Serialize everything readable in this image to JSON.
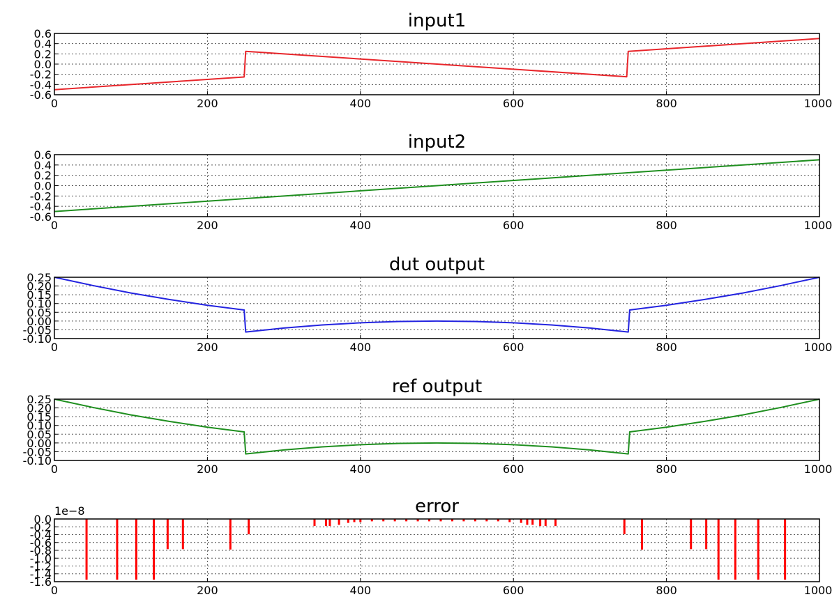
{
  "chart_data": [
    {
      "type": "line",
      "title": "input1",
      "xlim": [
        0,
        1000
      ],
      "ylim": [
        -0.6,
        0.6
      ],
      "xticks": [
        "0",
        "200",
        "400",
        "600",
        "800",
        "1000"
      ],
      "yticks": [
        "0.6",
        "0.4",
        "0.2",
        "0.0",
        "-0.2",
        "-0.4",
        "-0.6"
      ],
      "grid": true,
      "series": [
        {
          "color": "#e8262b",
          "x": [
            0,
            248,
            250,
            500,
            748,
            750,
            1000
          ],
          "y": [
            -0.5,
            -0.252,
            0.25,
            0.0,
            -0.248,
            0.25,
            0.5
          ]
        }
      ]
    },
    {
      "type": "line",
      "title": "input2",
      "xlim": [
        0,
        1000
      ],
      "ylim": [
        -0.6,
        0.6
      ],
      "xticks": [
        "0",
        "200",
        "400",
        "600",
        "800",
        "1000"
      ],
      "yticks": [
        "0.6",
        "0.4",
        "0.2",
        "0.0",
        "-0.2",
        "-0.4",
        "-0.6"
      ],
      "grid": true,
      "series": [
        {
          "color": "#1f8f1f",
          "x": [
            0,
            1000
          ],
          "y": [
            -0.5,
            0.5
          ]
        }
      ]
    },
    {
      "type": "line",
      "title": "dut output",
      "xlim": [
        0,
        1000
      ],
      "ylim": [
        -0.1,
        0.25
      ],
      "xticks": [
        "0",
        "200",
        "400",
        "600",
        "800",
        "1000"
      ],
      "yticks": [
        "0.25",
        "0.20",
        "0.15",
        "0.10",
        "0.05",
        "0.00",
        "-0.05",
        "-0.10"
      ],
      "grid": true,
      "series": [
        {
          "color": "#2424e0",
          "x": [
            0,
            50,
            100,
            150,
            200,
            248,
            250,
            300,
            350,
            400,
            450,
            500,
            550,
            600,
            650,
            700,
            750,
            752,
            800,
            850,
            900,
            950,
            1000
          ],
          "y": [
            0.25,
            0.203,
            0.16,
            0.123,
            0.09,
            0.063,
            -0.0625,
            -0.04,
            -0.0225,
            -0.01,
            -0.0025,
            0.0,
            -0.0025,
            -0.01,
            -0.0225,
            -0.04,
            -0.0625,
            0.063,
            0.09,
            0.123,
            0.16,
            0.203,
            0.25
          ]
        }
      ]
    },
    {
      "type": "line",
      "title": "ref output",
      "xlim": [
        0,
        1000
      ],
      "ylim": [
        -0.1,
        0.25
      ],
      "xticks": [
        "0",
        "200",
        "400",
        "600",
        "800",
        "1000"
      ],
      "yticks": [
        "0.25",
        "0.20",
        "0.15",
        "0.10",
        "0.05",
        "0.00",
        "-0.05",
        "-0.10"
      ],
      "grid": true,
      "series": [
        {
          "color": "#1f8f1f",
          "x": [
            0,
            50,
            100,
            150,
            200,
            248,
            250,
            300,
            350,
            400,
            450,
            500,
            550,
            600,
            650,
            700,
            750,
            752,
            800,
            850,
            900,
            950,
            1000
          ],
          "y": [
            0.25,
            0.203,
            0.16,
            0.123,
            0.09,
            0.063,
            -0.0625,
            -0.04,
            -0.0225,
            -0.01,
            -0.0025,
            0.0,
            -0.0025,
            -0.01,
            -0.0225,
            -0.04,
            -0.0625,
            0.063,
            0.09,
            0.123,
            0.16,
            0.203,
            0.25
          ]
        }
      ]
    },
    {
      "type": "bar",
      "title": "error",
      "offset_label": "1e−8",
      "xlim": [
        0,
        1000
      ],
      "ylim": [
        -1.6,
        0.0
      ],
      "xticks": [
        "0",
        "200",
        "400",
        "600",
        "800",
        "1000"
      ],
      "yticks": [
        "0.0",
        "-0.2",
        "-0.4",
        "-0.6",
        "-0.8",
        "-1.0",
        "-1.2",
        "-1.4",
        "-1.6"
      ],
      "grid": true,
      "series": [
        {
          "color": "#ff0000",
          "x": [
            42,
            82,
            107,
            130,
            148,
            168,
            230,
            254,
            340,
            355,
            360,
            372,
            384,
            392,
            400,
            415,
            430,
            445,
            460,
            475,
            490,
            505,
            520,
            535,
            550,
            565,
            580,
            595,
            610,
            618,
            625,
            635,
            642,
            655,
            745,
            768,
            832,
            852,
            868,
            890,
            920,
            955
          ],
          "y": [
            -1.55,
            -1.55,
            -1.55,
            -1.55,
            -0.77,
            -0.77,
            -0.78,
            -0.39,
            -0.18,
            -0.18,
            -0.18,
            -0.15,
            -0.1,
            -0.08,
            -0.08,
            -0.06,
            -0.06,
            -0.06,
            -0.06,
            -0.06,
            -0.06,
            -0.06,
            -0.06,
            -0.06,
            -0.06,
            -0.06,
            -0.06,
            -0.08,
            -0.1,
            -0.15,
            -0.15,
            -0.18,
            -0.18,
            -0.18,
            -0.39,
            -0.78,
            -0.77,
            -0.77,
            -1.55,
            -1.55,
            -1.55,
            -1.55
          ]
        }
      ]
    }
  ]
}
